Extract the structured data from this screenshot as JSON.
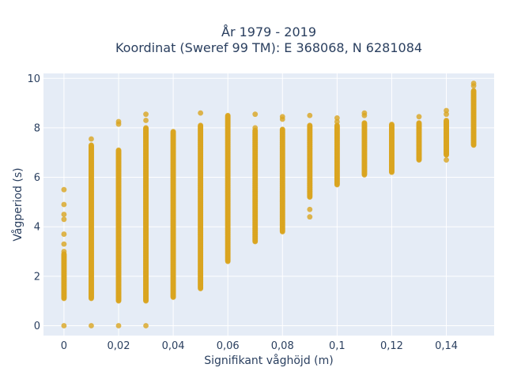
{
  "chart_data": {
    "type": "scatter",
    "title_line1": "År 1979 - 2019",
    "title_line2": "Koordinat (Sweref 99 TM): E 368068, N 6281084",
    "xlabel": "Signifikant våghöjd (m)",
    "ylabel": "Vågperiod (s)",
    "xlim": [
      -0.0075,
      0.1575
    ],
    "ylim": [
      -0.4,
      10.2
    ],
    "x_ticks": [
      {
        "value": 0,
        "label": "0"
      },
      {
        "value": 0.02,
        "label": "0,02"
      },
      {
        "value": 0.04,
        "label": "0,04"
      },
      {
        "value": 0.06,
        "label": "0,06"
      },
      {
        "value": 0.08,
        "label": "0,08"
      },
      {
        "value": 0.1,
        "label": "0,1"
      },
      {
        "value": 0.12,
        "label": "0,12"
      },
      {
        "value": 0.14,
        "label": "0,14"
      }
    ],
    "y_ticks": [
      {
        "value": 0,
        "label": "0"
      },
      {
        "value": 2,
        "label": "2"
      },
      {
        "value": 4,
        "label": "4"
      },
      {
        "value": 6,
        "label": "6"
      },
      {
        "value": 8,
        "label": "8"
      },
      {
        "value": 10,
        "label": "10"
      }
    ],
    "grid": true,
    "marker_color": "#DAA520",
    "plot_bg": "#E5ECF6",
    "columns": [
      {
        "x": 0,
        "min": 1.1,
        "max": 2.9,
        "points": [
          0,
          3.0,
          3.3,
          3.7,
          4.3,
          4.5,
          4.9,
          5.5
        ]
      },
      {
        "x": 0.01,
        "min": 1.1,
        "max": 7.3,
        "points": [
          0,
          7.55
        ]
      },
      {
        "x": 0.02,
        "min": 1.0,
        "max": 7.1,
        "points": [
          0,
          8.15,
          8.25
        ]
      },
      {
        "x": 0.03,
        "min": 1.0,
        "max": 8.0,
        "points": [
          0,
          8.3,
          8.55
        ]
      },
      {
        "x": 0.04,
        "min": 1.15,
        "max": 7.85,
        "points": []
      },
      {
        "x": 0.05,
        "min": 1.5,
        "max": 8.1,
        "points": [
          8.6
        ]
      },
      {
        "x": 0.06,
        "min": 2.6,
        "max": 8.5,
        "points": []
      },
      {
        "x": 0.07,
        "min": 3.4,
        "max": 7.9,
        "points": [
          8.0,
          8.55
        ]
      },
      {
        "x": 0.08,
        "min": 3.8,
        "max": 7.95,
        "points": [
          8.35,
          8.45
        ]
      },
      {
        "x": 0.09,
        "min": 5.2,
        "max": 8.1,
        "points": [
          4.4,
          4.7,
          8.5
        ]
      },
      {
        "x": 0.1,
        "min": 5.7,
        "max": 8.1,
        "points": [
          8.25,
          8.4
        ]
      },
      {
        "x": 0.11,
        "min": 6.1,
        "max": 8.2,
        "points": [
          8.5,
          8.6
        ]
      },
      {
        "x": 0.12,
        "min": 6.2,
        "max": 8.15,
        "points": []
      },
      {
        "x": 0.13,
        "min": 6.7,
        "max": 8.2,
        "points": [
          8.45
        ]
      },
      {
        "x": 0.14,
        "min": 6.9,
        "max": 8.3,
        "points": [
          6.7,
          8.55,
          8.7
        ]
      },
      {
        "x": 0.15,
        "min": 7.3,
        "max": 9.5,
        "points": [
          9.7,
          9.8
        ]
      }
    ]
  }
}
